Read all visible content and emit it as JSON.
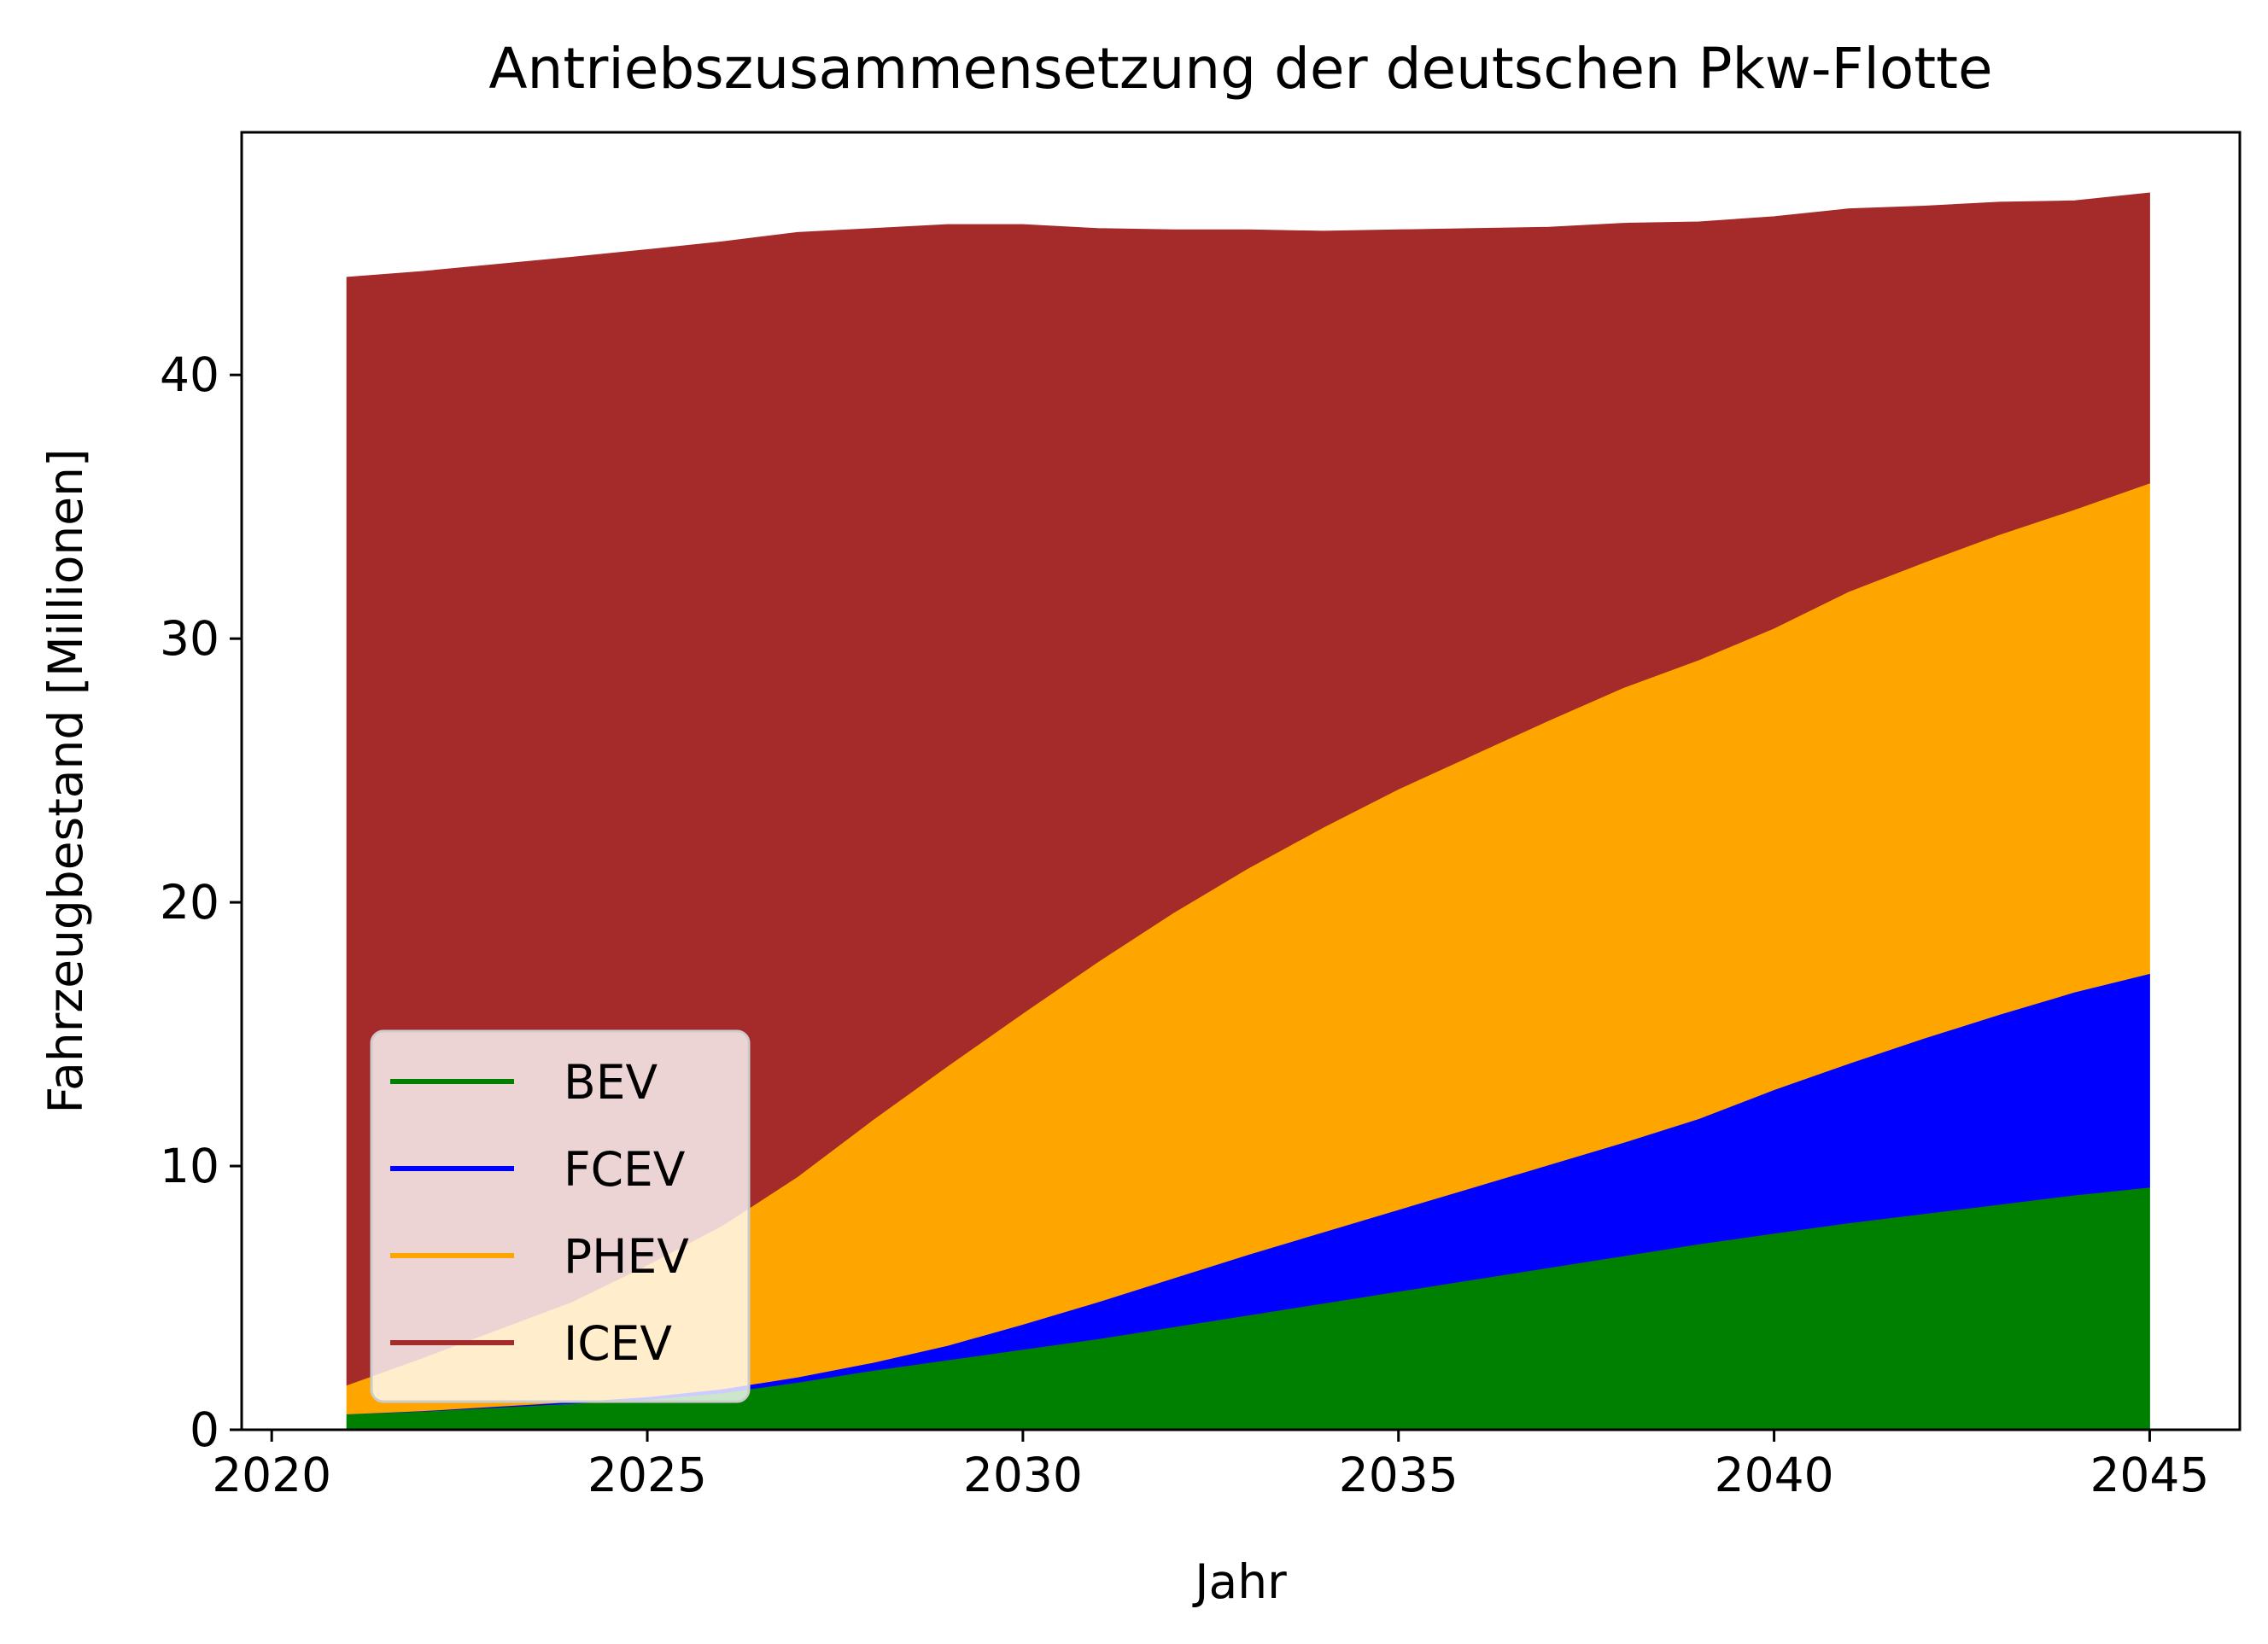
{
  "chart_data": {
    "type": "area",
    "stacked": true,
    "title": "Antriebszusammensetzung der deutschen Pkw-Flotte",
    "xlabel": "Jahr",
    "ylabel": "Fahrzeugbestand [Millionen]",
    "xlim": [
      2019.6,
      2046.2
    ],
    "ylim": [
      0,
      49.2
    ],
    "xticks": [
      2020,
      2025,
      2030,
      2035,
      2040,
      2045
    ],
    "yticks": [
      0,
      10,
      20,
      30,
      40
    ],
    "grid": false,
    "legend_position": "lower-left",
    "x": [
      2021,
      2022,
      2023,
      2024,
      2025,
      2026,
      2027,
      2028,
      2029,
      2030,
      2031,
      2032,
      2033,
      2034,
      2035,
      2036,
      2037,
      2038,
      2039,
      2040,
      2041,
      2042,
      2043,
      2044,
      2045
    ],
    "series": [
      {
        "name": "BEV",
        "color": "#008000",
        "values": [
          0.6,
          0.7,
          0.85,
          1.0,
          1.15,
          1.4,
          1.8,
          2.25,
          2.65,
          3.05,
          3.45,
          3.9,
          4.35,
          4.8,
          5.25,
          5.7,
          6.15,
          6.6,
          7.05,
          7.45,
          7.85,
          8.2,
          8.55,
          8.9,
          9.2
        ]
      },
      {
        "name": "FCEV",
        "color": "#0000ff",
        "values": [
          0.0,
          0.02,
          0.04,
          0.06,
          0.1,
          0.15,
          0.2,
          0.3,
          0.55,
          0.95,
          1.4,
          1.85,
          2.3,
          2.7,
          3.1,
          3.5,
          3.9,
          4.3,
          4.75,
          5.45,
          6.05,
          6.65,
          7.2,
          7.7,
          8.1
        ]
      },
      {
        "name": "PHEV",
        "color": "#ffa500",
        "values": [
          1.1,
          2.0,
          2.9,
          3.8,
          5.0,
          6.2,
          7.6,
          9.2,
          10.6,
          11.8,
          12.9,
          13.85,
          14.65,
          15.35,
          15.95,
          16.4,
          16.85,
          17.25,
          17.4,
          17.5,
          17.9,
          18.05,
          18.2,
          18.3,
          18.6
        ]
      },
      {
        "name": "ICEV",
        "color": "#a52a2a",
        "values": [
          42.0,
          41.2,
          40.4,
          39.6,
          38.5,
          37.3,
          35.8,
          33.8,
          31.9,
          29.9,
          27.8,
          25.9,
          24.2,
          22.6,
          21.2,
          19.95,
          18.7,
          17.6,
          16.6,
          15.6,
          14.5,
          13.5,
          12.6,
          11.7,
          11.0
        ]
      }
    ]
  }
}
